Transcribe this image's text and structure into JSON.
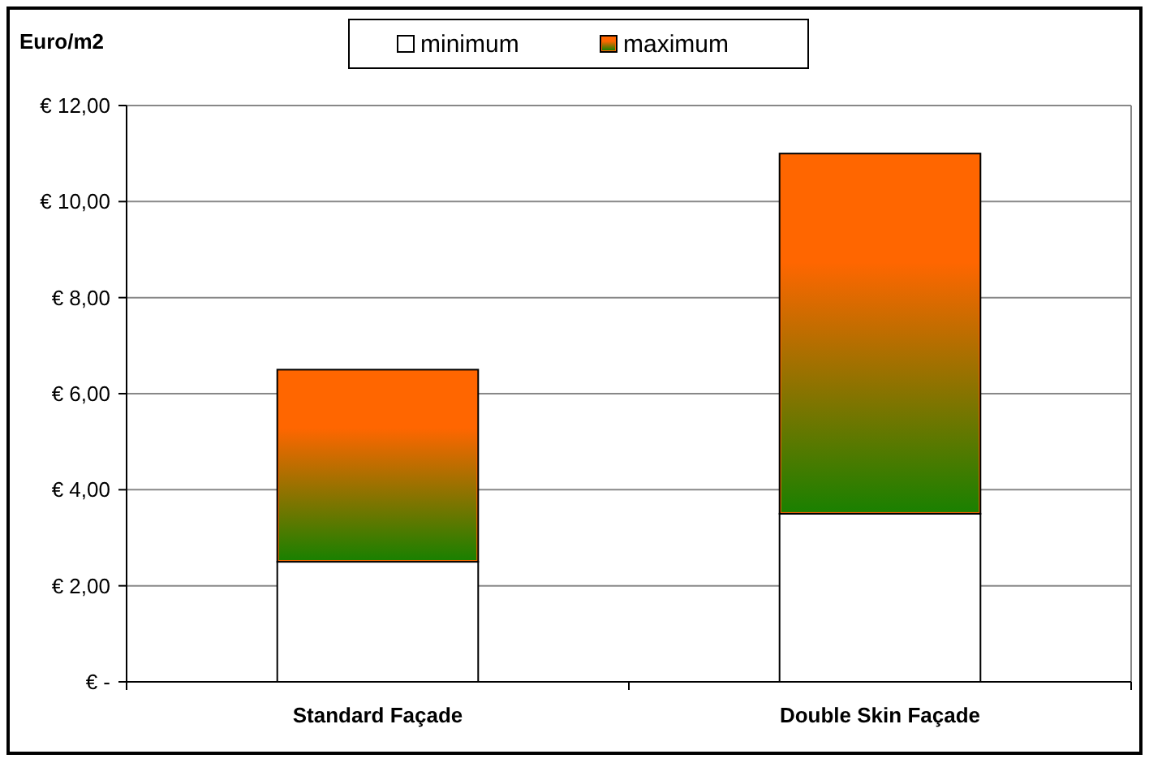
{
  "chart_data": {
    "type": "bar",
    "ylabel": "Euro/m2",
    "categories": [
      "Standard Façade",
      "Double Skin Façade"
    ],
    "stacked": true,
    "series": [
      {
        "name": "minimum",
        "color": "#ffffff",
        "values": [
          2.5,
          3.5
        ]
      },
      {
        "name": "maximum",
        "color": "#ff6600",
        "values": [
          4.0,
          7.5
        ]
      }
    ],
    "ylim": [
      0,
      12
    ],
    "yticks": [
      {
        "value": 0,
        "label": "€ -"
      },
      {
        "value": 2,
        "label": "€ 2,00"
      },
      {
        "value": 4,
        "label": "€ 4,00"
      },
      {
        "value": 6,
        "label": "€ 6,00"
      },
      {
        "value": 8,
        "label": "€ 8,00"
      },
      {
        "value": 10,
        "label": "€ 10,00"
      },
      {
        "value": 12,
        "label": "€ 12,00"
      }
    ],
    "grid": "y",
    "legend": "top"
  }
}
